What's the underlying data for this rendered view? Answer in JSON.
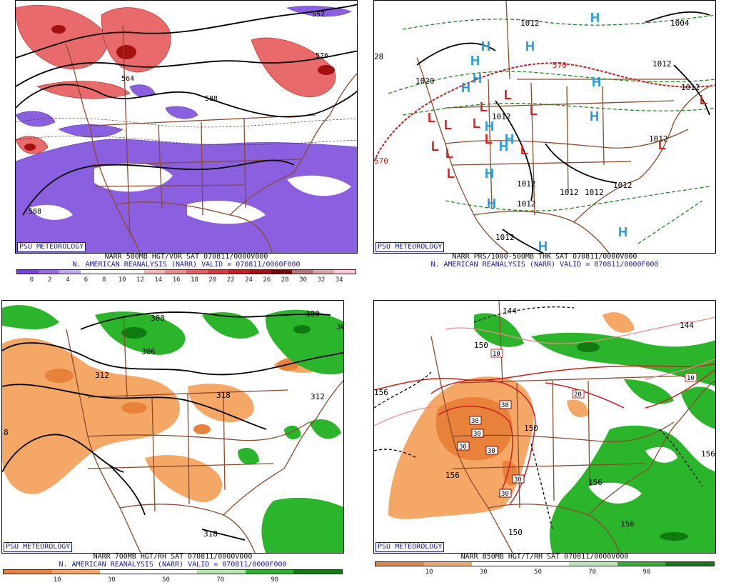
{
  "badge": "PSU METEOROLOGY",
  "panels": {
    "tl": {
      "line1": "NARR 500MB HGT/VOR SAT 070811/0000V000",
      "line2": "N. AMERICAN REANALYSIS (NARR) VALID = 070811/0000F000",
      "colorbar": [
        "#7a3fd6",
        "#9a6be0",
        "#c3abef",
        "#ffffff",
        "#ffffff",
        "#ffffff",
        "#f2b8b8",
        "#ec8c8c",
        "#e26262",
        "#d43c3c",
        "#c21f1f",
        "#a50f0f",
        "#7a0a0a",
        "#b57575",
        "#d9a5a5",
        "#ffc9d6"
      ],
      "ticks": [
        "0",
        "2",
        "4",
        "6",
        "8",
        "10",
        "12",
        "14",
        "16",
        "18",
        "20",
        "22",
        "24",
        "26",
        "28",
        "30",
        "32",
        "34"
      ],
      "labels": [
        "552",
        "564",
        "576",
        "588",
        "588"
      ]
    },
    "tr": {
      "line1": "NARR PRS/1000-500MB THK SAT 070811/0000V000",
      "line2": "N. AMERICAN REANALYSIS (NARR) VALID = 070811/0000F000",
      "labels": [
        "1012",
        "1004",
        "1020",
        "1012",
        "1012",
        "1012",
        "1012",
        "1012",
        "1012",
        "1012",
        "1012",
        "1012",
        "1012",
        "570",
        "570",
        "28"
      ],
      "highs": "H",
      "lows": "L"
    },
    "bl": {
      "line1": "NARR 700MB HGT/RH SAT 070811/0000V000",
      "line2": "N. AMERICAN REANALYSIS (NARR) VALID = 070811/0000F000",
      "colorbar": [
        "#e8813a",
        "#f5a766",
        "#ffffff",
        "#ffffff",
        "#b7e8b0",
        "#2bb52b",
        "#0f7a0f"
      ],
      "ticks": [
        "10",
        "30",
        "50",
        "70",
        "90"
      ],
      "labels": [
        "300",
        "300",
        "306",
        "306",
        "312",
        "312",
        "318",
        "318",
        "8"
      ]
    },
    "br": {
      "line1": "NARR 850MB HGT/T/RH SAT 070811/0000V000",
      "colorbar": [
        "#e8813a",
        "#f5a766",
        "#ffffff",
        "#ffffff",
        "#b7e8b0",
        "#2bb52b",
        "#0f7a0f"
      ],
      "ticks": [
        "10",
        "30",
        "50",
        "70",
        "90"
      ],
      "labels": [
        "144",
        "150",
        "144",
        "156",
        "156",
        "150",
        "156",
        "150",
        "156",
        "156"
      ],
      "temps": [
        "10",
        "10",
        "20",
        "30",
        "30",
        "30",
        "30",
        "30",
        "30",
        "30",
        "30"
      ]
    }
  }
}
